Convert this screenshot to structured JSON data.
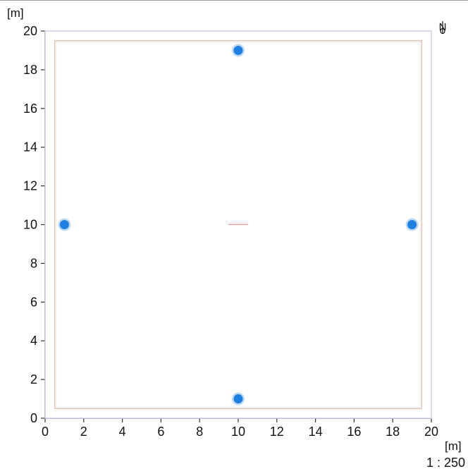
{
  "plan": {
    "unit_label": "[m]",
    "scale": "1 : 250",
    "north_label": "N",
    "north_icon": "north-arrow-icon",
    "x_ticks": [
      0,
      2,
      4,
      6,
      8,
      10,
      12,
      14,
      16,
      18,
      20
    ],
    "y_ticks": [
      0,
      2,
      4,
      6,
      8,
      10,
      12,
      14,
      16,
      18,
      20
    ],
    "xlim": [
      0,
      20
    ],
    "ylim": [
      0,
      20
    ],
    "room": {
      "x": [
        0,
        20
      ],
      "y": [
        0,
        20
      ]
    },
    "inner_boundary": {
      "x": [
        0.5,
        19.5
      ],
      "y": [
        0.5,
        19.5
      ]
    },
    "luminaires": [
      {
        "x": 10,
        "y": 19
      },
      {
        "x": 1,
        "y": 10
      },
      {
        "x": 19,
        "y": 10
      },
      {
        "x": 10,
        "y": 1
      }
    ],
    "center_marker": {
      "x": 10,
      "y": 10
    },
    "colors": {
      "room_outline": "#c9cce0",
      "inner_boundary": "#e2c8b8",
      "luminaire": "#1f7fe0",
      "luminaire_halo": "#bcd9f3",
      "center_marker": "#d88a8a",
      "axis": "#333333"
    }
  }
}
